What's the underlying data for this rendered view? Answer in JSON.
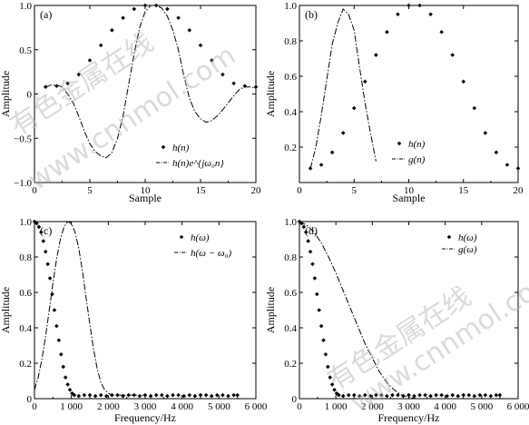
{
  "watermark": {
    "text_cn": "有色金属在线",
    "text_url": "www.cnnmol.com"
  },
  "chart_data": [
    {
      "type": "scatter",
      "panel": "(a)",
      "xlabel": "Sample",
      "ylabel": "Amplitude",
      "xlim": [
        0,
        20
      ],
      "ylim": [
        -1.0,
        1.0
      ],
      "xticks": [
        0,
        5,
        10,
        15,
        20
      ],
      "xtick_labels": [
        "0",
        "5",
        "10",
        "15",
        "20"
      ],
      "yticks": [
        -1.0,
        -0.5,
        0,
        0.5,
        1.0
      ],
      "ytick_labels": [
        "−1.0",
        "−0.5",
        "0",
        "0.5",
        "1.0"
      ],
      "legend_position": "lower-right",
      "series": [
        {
          "name": "h(n)",
          "style": "markers",
          "x": [
            1,
            2,
            3,
            4,
            5,
            6,
            7,
            8,
            9,
            10,
            11,
            12,
            13,
            14,
            15,
            16,
            17,
            18,
            19,
            20
          ],
          "y": [
            0.08,
            0.09,
            0.12,
            0.22,
            0.38,
            0.55,
            0.72,
            0.86,
            0.96,
            1.0,
            1.0,
            0.96,
            0.86,
            0.72,
            0.55,
            0.38,
            0.22,
            0.12,
            0.09,
            0.08
          ]
        },
        {
          "name": "h(n)e^{jω₀n}",
          "style": "dashdot",
          "x": [
            1,
            1.5,
            2,
            2.5,
            3,
            3.5,
            4,
            4.5,
            5,
            5.5,
            6,
            6.5,
            7,
            7.5,
            8,
            8.5,
            9,
            9.5,
            10,
            10.5,
            11,
            11.5,
            12,
            12.5,
            13,
            13.5,
            14,
            14.5,
            15,
            15.5,
            16,
            16.5,
            17,
            17.5,
            18,
            18.5,
            19,
            19.5,
            20
          ],
          "y": [
            0.08,
            0.1,
            0.1,
            0.08,
            0.0,
            -0.1,
            -0.25,
            -0.42,
            -0.56,
            -0.65,
            -0.7,
            -0.72,
            -0.66,
            -0.5,
            -0.25,
            0.1,
            0.45,
            0.75,
            0.93,
            1.0,
            1.0,
            0.97,
            0.88,
            0.72,
            0.5,
            0.2,
            -0.05,
            -0.2,
            -0.28,
            -0.32,
            -0.3,
            -0.25,
            -0.18,
            -0.1,
            -0.02,
            0.05,
            0.08,
            0.08,
            0.06
          ]
        }
      ]
    },
    {
      "type": "scatter",
      "panel": "(b)",
      "xlabel": "Sample",
      "ylabel": "Amplitude",
      "xlim": [
        0,
        20
      ],
      "ylim": [
        0,
        1.0
      ],
      "xticks": [
        0,
        5,
        10,
        15,
        20
      ],
      "xtick_labels": [
        "0",
        "5",
        "10",
        "15",
        "20"
      ],
      "yticks": [
        0.2,
        0.4,
        0.6,
        0.8,
        1.0
      ],
      "ytick_labels": [
        "0.2",
        "0.4",
        "0.6",
        "0.8",
        "1.0"
      ],
      "legend_position": "lower-right",
      "series": [
        {
          "name": "h(n)",
          "style": "markers",
          "x": [
            1,
            2,
            3,
            4,
            5,
            6,
            7,
            8,
            9,
            10,
            11,
            12,
            13,
            14,
            15,
            16,
            17,
            18,
            19,
            20
          ],
          "y": [
            0.08,
            0.1,
            0.17,
            0.28,
            0.42,
            0.57,
            0.72,
            0.85,
            0.95,
            1.0,
            1.0,
            0.95,
            0.85,
            0.72,
            0.57,
            0.42,
            0.28,
            0.17,
            0.1,
            0.08
          ]
        },
        {
          "name": "g(n)",
          "style": "dashdot",
          "x": [
            1,
            1.5,
            2,
            2.5,
            3,
            3.5,
            4,
            4.5,
            5,
            5.5,
            6,
            6.5,
            7
          ],
          "y": [
            0.08,
            0.2,
            0.38,
            0.58,
            0.78,
            0.9,
            0.98,
            0.95,
            0.86,
            0.65,
            0.45,
            0.28,
            0.12
          ]
        }
      ]
    },
    {
      "type": "scatter",
      "panel": "(c)",
      "xlabel": "Frequency/Hz",
      "ylabel": "Amplitude",
      "xlim": [
        0,
        6000
      ],
      "ylim": [
        0,
        1.0
      ],
      "xticks": [
        0,
        1000,
        2000,
        3000,
        4000,
        5000,
        6000
      ],
      "xtick_labels": [
        "0",
        "1 000",
        "2 000",
        "3 000",
        "4 000",
        "5 000",
        "6 000"
      ],
      "yticks": [
        0,
        0.2,
        0.4,
        0.6,
        0.8,
        1.0
      ],
      "ytick_labels": [
        "0",
        "0.2",
        "0.4",
        "0.6",
        "0.8",
        "1.0"
      ],
      "legend_position": "top-right",
      "series": [
        {
          "name": "h(ω)",
          "style": "markers",
          "x": [
            0,
            60,
            120,
            180,
            240,
            300,
            360,
            420,
            480,
            540,
            600,
            660,
            720,
            780,
            840,
            900,
            960,
            1020,
            1080,
            1200,
            1350,
            1500,
            1650,
            1800,
            1950,
            2100,
            2250,
            2400,
            2550,
            2700,
            2850,
            3000,
            3150,
            3300,
            3450,
            3600,
            3750,
            3900,
            4050,
            4200,
            4350,
            4500,
            4650,
            4800,
            4950,
            5100,
            5250,
            5400,
            5500
          ],
          "y": [
            1.0,
            0.99,
            0.97,
            0.94,
            0.89,
            0.83,
            0.76,
            0.68,
            0.59,
            0.5,
            0.41,
            0.33,
            0.25,
            0.18,
            0.12,
            0.08,
            0.05,
            0.03,
            0.02,
            0.015,
            0.02,
            0.02,
            0.015,
            0.02,
            0.015,
            0.02,
            0.02,
            0.015,
            0.02,
            0.02,
            0.015,
            0.02,
            0.015,
            0.02,
            0.02,
            0.015,
            0.02,
            0.02,
            0.015,
            0.02,
            0.015,
            0.02,
            0.02,
            0.015,
            0.02,
            0.02,
            0.015,
            0.02,
            0.02
          ]
        },
        {
          "name": "h(ω − ω₀)",
          "style": "dashdot",
          "x": [
            0,
            100,
            200,
            300,
            400,
            500,
            600,
            700,
            800,
            900,
            1000,
            1100,
            1200,
            1300,
            1400,
            1500,
            1600,
            1700,
            1800,
            1900,
            2000,
            2100,
            2300,
            2600,
            3000
          ],
          "y": [
            0.05,
            0.12,
            0.22,
            0.35,
            0.5,
            0.65,
            0.79,
            0.9,
            0.97,
            1.0,
            0.99,
            0.94,
            0.85,
            0.72,
            0.57,
            0.42,
            0.28,
            0.17,
            0.09,
            0.05,
            0.03,
            0.02,
            0.02,
            0.02,
            0.02
          ]
        }
      ]
    },
    {
      "type": "scatter",
      "panel": "(d)",
      "xlabel": "Frequency/Hz",
      "ylabel": "Amplitude",
      "xlim": [
        0,
        6000
      ],
      "ylim": [
        0,
        1.0
      ],
      "xticks": [
        0,
        1000,
        2000,
        3000,
        4000,
        5000,
        6000
      ],
      "xtick_labels": [
        "0",
        "1 000",
        "2 000",
        "3 000",
        "4 000",
        "5 000",
        "6 000"
      ],
      "yticks": [
        0,
        0.2,
        0.4,
        0.6,
        0.8,
        1.0
      ],
      "ytick_labels": [
        "0",
        "0.2",
        "0.4",
        "0.6",
        "0.8",
        "1.0"
      ],
      "legend_position": "top-right",
      "series": [
        {
          "name": "h(ω)",
          "style": "markers",
          "x": [
            0,
            60,
            120,
            180,
            240,
            300,
            360,
            420,
            480,
            540,
            600,
            660,
            720,
            780,
            840,
            900,
            960,
            1020,
            1080,
            1200,
            1350,
            1500,
            1650,
            1800,
            1950,
            2100,
            2250,
            2400,
            2550,
            2700,
            2850,
            3000,
            3150,
            3300,
            3450,
            3600,
            3750,
            3900,
            4050,
            4200,
            4350,
            4500,
            4650,
            4800,
            4950,
            5100,
            5250,
            5400,
            5500
          ],
          "y": [
            1.0,
            0.99,
            0.97,
            0.94,
            0.89,
            0.83,
            0.76,
            0.68,
            0.59,
            0.5,
            0.41,
            0.33,
            0.25,
            0.18,
            0.12,
            0.08,
            0.05,
            0.03,
            0.02,
            0.015,
            0.02,
            0.02,
            0.015,
            0.02,
            0.015,
            0.02,
            0.02,
            0.015,
            0.02,
            0.02,
            0.015,
            0.02,
            0.015,
            0.02,
            0.02,
            0.015,
            0.02,
            0.02,
            0.015,
            0.02,
            0.015,
            0.02,
            0.02,
            0.015,
            0.02,
            0.02,
            0.015,
            0.02,
            0.02
          ]
        },
        {
          "name": "g(ω)",
          "style": "dashdot",
          "x": [
            0,
            200,
            400,
            600,
            800,
            1000,
            1200,
            1400,
            1600,
            1800,
            2000,
            2200,
            2400,
            2600,
            2800,
            3000,
            3200
          ],
          "y": [
            1.0,
            0.98,
            0.94,
            0.88,
            0.8,
            0.71,
            0.61,
            0.51,
            0.41,
            0.31,
            0.23,
            0.15,
            0.09,
            0.05,
            0.02,
            0.01,
            0.0
          ]
        }
      ]
    }
  ]
}
